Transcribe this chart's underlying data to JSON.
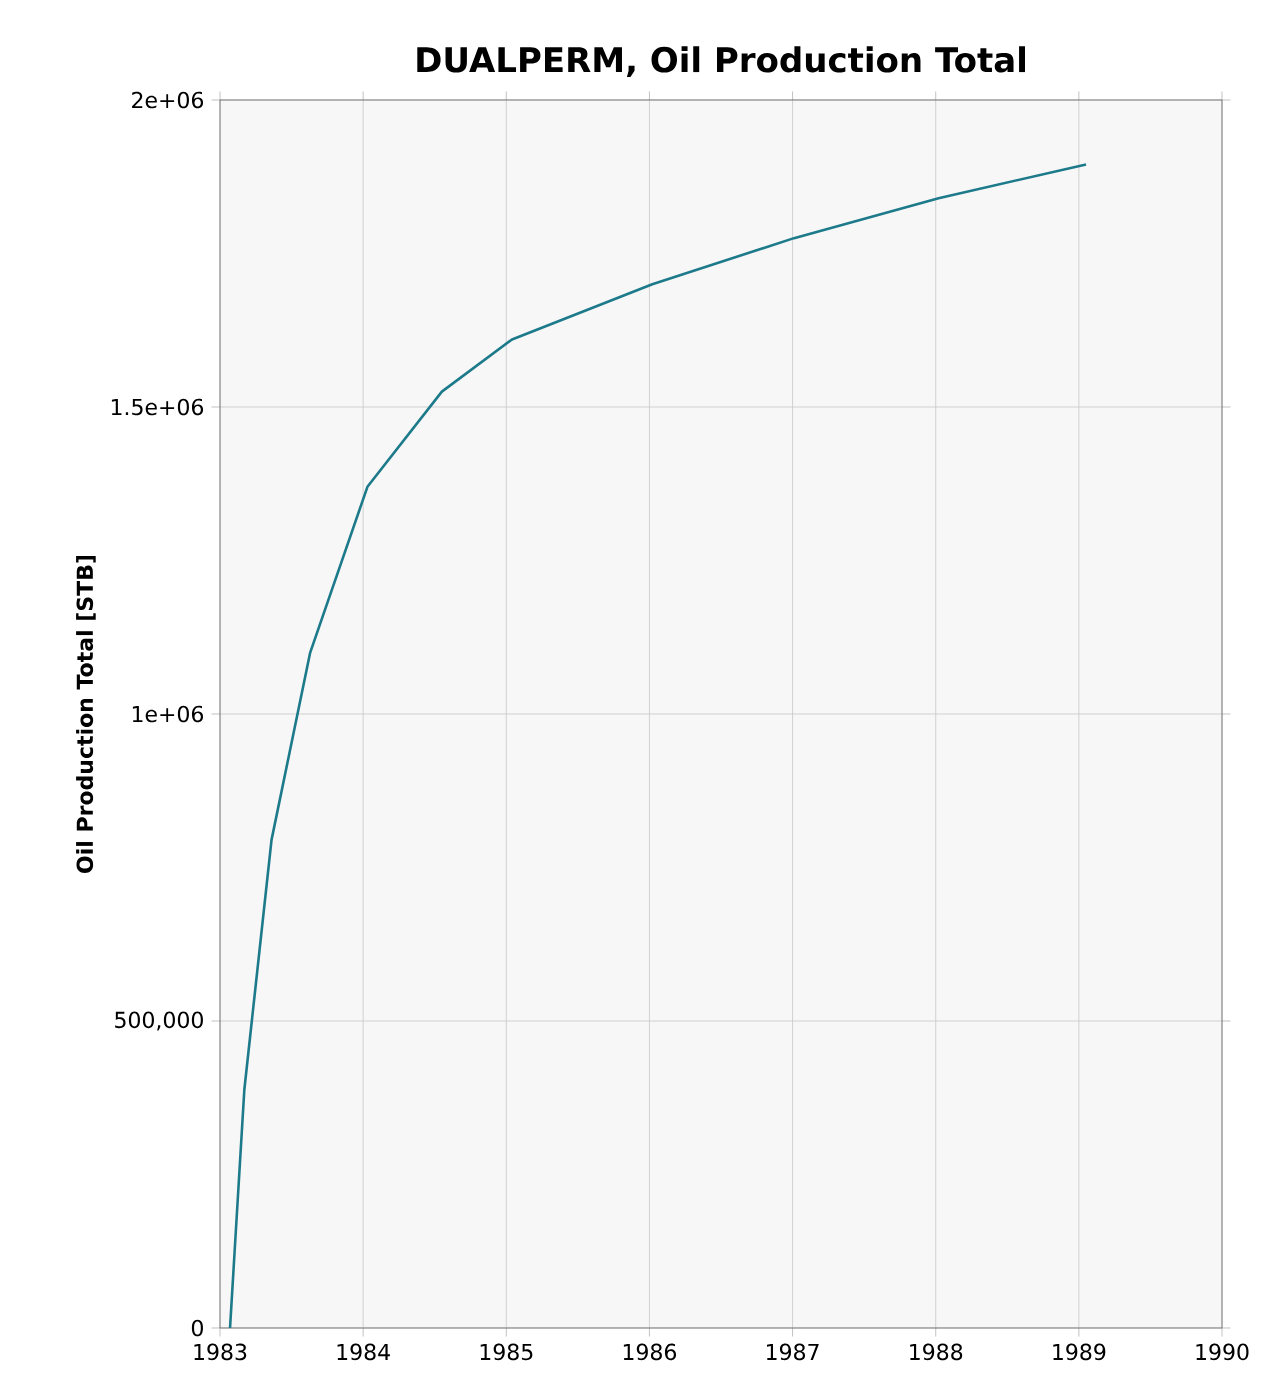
{
  "chart_data": {
    "type": "line",
    "title": "DUALPERM, Oil Production Total",
    "ylabel": "Oil Production Total [STB]",
    "x": [
      1983.07,
      1983.17,
      1983.36,
      1983.63,
      1984.03,
      1984.55,
      1985.04,
      1986.02,
      1987.01,
      1988.02,
      1989.05
    ],
    "series": [
      {
        "color": "#1c7a8a",
        "values": [
          0,
          388000,
          795000,
          1100000,
          1370000,
          1525000,
          1610000,
          1700000,
          1775000,
          1840000,
          1895000
        ]
      }
    ],
    "xlim": [
      1983,
      1990
    ],
    "xticks": [
      1983,
      1984,
      1985,
      1986,
      1987,
      1988,
      1989,
      1990
    ],
    "ylim": [
      0,
      2000000
    ],
    "yticks": [
      {
        "value": 0,
        "label": "0"
      },
      {
        "value": 500000,
        "label": "500,000"
      },
      {
        "value": 1000000,
        "label": "1e+06"
      },
      {
        "value": 1500000,
        "label": "1.5e+06"
      },
      {
        "value": 2000000,
        "label": "2e+06"
      }
    ],
    "grid": true,
    "marker": "none",
    "line_style": "solid"
  }
}
